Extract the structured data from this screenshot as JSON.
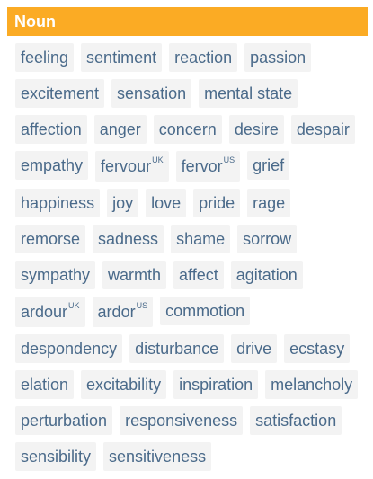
{
  "header": {
    "title": "Noun"
  },
  "tags": [
    {
      "word": "feeling"
    },
    {
      "word": "sentiment"
    },
    {
      "word": "reaction"
    },
    {
      "word": "passion"
    },
    {
      "word": "excitement"
    },
    {
      "word": "sensation"
    },
    {
      "word": "mental state"
    },
    {
      "word": "affection"
    },
    {
      "word": "anger"
    },
    {
      "word": "concern"
    },
    {
      "word": "desire"
    },
    {
      "word": "despair"
    },
    {
      "word": "empathy"
    },
    {
      "word": "fervour",
      "region": "UK"
    },
    {
      "word": "fervor",
      "region": "US"
    },
    {
      "word": "grief"
    },
    {
      "word": "happiness"
    },
    {
      "word": "joy"
    },
    {
      "word": "love"
    },
    {
      "word": "pride"
    },
    {
      "word": "rage"
    },
    {
      "word": "remorse"
    },
    {
      "word": "sadness"
    },
    {
      "word": "shame"
    },
    {
      "word": "sorrow"
    },
    {
      "word": "sympathy"
    },
    {
      "word": "warmth"
    },
    {
      "word": "affect"
    },
    {
      "word": "agitation"
    },
    {
      "word": "ardour",
      "region": "UK"
    },
    {
      "word": "ardor",
      "region": "US"
    },
    {
      "word": "commotion"
    },
    {
      "word": "despondency"
    },
    {
      "word": "disturbance"
    },
    {
      "word": "drive"
    },
    {
      "word": "ecstasy"
    },
    {
      "word": "elation"
    },
    {
      "word": "excitability"
    },
    {
      "word": "inspiration"
    },
    {
      "word": "melancholy"
    },
    {
      "word": "perturbation"
    },
    {
      "word": "responsiveness"
    },
    {
      "word": "satisfaction"
    },
    {
      "word": "sensibility"
    },
    {
      "word": "sensitiveness"
    }
  ],
  "colors": {
    "header_bg": "#fbab24",
    "tag_bg": "#f3f3f3",
    "tag_text": "#4a6a8a"
  }
}
